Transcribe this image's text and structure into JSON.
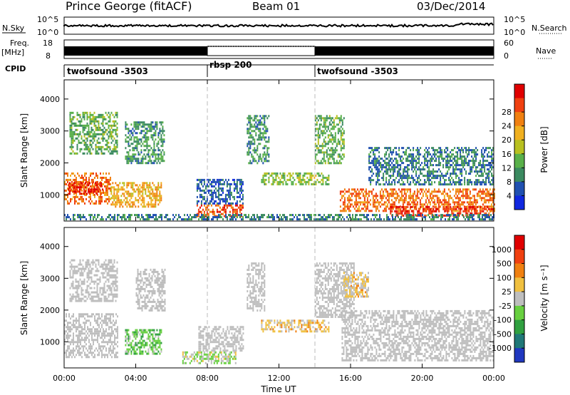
{
  "header": {
    "station": "Prince George (fitACF)",
    "beam": "Beam 01",
    "date": "03/Dec/2014"
  },
  "strips": {
    "nsky_label": "N.Sky",
    "nsky_ticks": [
      "10^5",
      "10^0"
    ],
    "nsearch_label": "N.Search",
    "nsearch_ticks": [
      "10^5",
      "10^0"
    ],
    "freq_label": "Freq.",
    "freq_unit": "[MHz]",
    "freq_ticks": [
      "18",
      "8"
    ],
    "nave_label": "Nave",
    "nave_ticks": [
      "60",
      "0"
    ],
    "cpid_label": "CPID",
    "cpid_segments": [
      {
        "label": "twofsound -3503",
        "start_hour": 0,
        "end_hour": 8
      },
      {
        "label": "rbsp 200",
        "start_hour": 8,
        "end_hour": 14
      },
      {
        "label": "twofsound -3503",
        "start_hour": 14,
        "end_hour": 24
      }
    ]
  },
  "axes": {
    "xlabel": "Time UT",
    "x_ticks": [
      "00:00",
      "04:00",
      "08:00",
      "12:00",
      "16:00",
      "20:00",
      "00:00"
    ],
    "ylabel": "Slant Range [km]",
    "y_ticks": [
      "1000",
      "2000",
      "3000",
      "4000"
    ]
  },
  "colorbars": {
    "power": {
      "label": "Power [dB]",
      "ticks": [
        "4",
        "8",
        "12",
        "16",
        "20",
        "24",
        "28"
      ],
      "colors": [
        "#1028e0",
        "#2050b0",
        "#3b8a60",
        "#59b04a",
        "#b8c020",
        "#f0b020",
        "#f08010",
        "#f04010",
        "#e00000"
      ]
    },
    "velocity": {
      "label": "Velocity [m s⁻¹]",
      "ticks": [
        "1000",
        "500",
        "100",
        "25",
        "-25",
        "-100",
        "-500",
        "-1000"
      ],
      "colors": [
        "#2038c0",
        "#207878",
        "#30a040",
        "#68d040",
        "#bebebe",
        "#f0c040",
        "#f08010",
        "#f04010",
        "#e00000"
      ]
    }
  },
  "chart_data": [
    {
      "type": "heatmap",
      "name": "power",
      "xlabel": "Time UT",
      "ylabel": "Slant Range [km]",
      "xlim": [
        0,
        24
      ],
      "ylim": [
        180,
        4600
      ],
      "clim": [
        0,
        32
      ],
      "vertical_markers_hour": [
        8,
        14
      ],
      "regions": [
        {
          "x": [
            0.0,
            2.6
          ],
          "y": [
            700,
            1700
          ],
          "value": 24
        },
        {
          "x": [
            0.2,
            2.2
          ],
          "y": [
            1000,
            1400
          ],
          "value": 28
        },
        {
          "x": [
            0.3,
            3.0
          ],
          "y": [
            2300,
            3600
          ],
          "value": 12
        },
        {
          "x": [
            2.6,
            5.4
          ],
          "y": [
            600,
            1400
          ],
          "value": 20
        },
        {
          "x": [
            3.4,
            5.6
          ],
          "y": [
            2000,
            3300
          ],
          "value": 10
        },
        {
          "x": [
            7.4,
            10.0
          ],
          "y": [
            300,
            700
          ],
          "value": 26
        },
        {
          "x": [
            7.4,
            10.0
          ],
          "y": [
            700,
            1500
          ],
          "value": 6
        },
        {
          "x": [
            10.2,
            11.4
          ],
          "y": [
            2000,
            3500
          ],
          "value": 10
        },
        {
          "x": [
            11.0,
            14.8
          ],
          "y": [
            1300,
            1700
          ],
          "value": 14
        },
        {
          "x": [
            14.0,
            15.6
          ],
          "y": [
            2000,
            3500
          ],
          "value": 12
        },
        {
          "x": [
            15.4,
            24.0
          ],
          "y": [
            500,
            1200
          ],
          "value": 24
        },
        {
          "x": [
            18.2,
            24.0
          ],
          "y": [
            350,
            650
          ],
          "value": 28
        },
        {
          "x": [
            17.0,
            24.0
          ],
          "y": [
            1300,
            2500
          ],
          "value": 8
        },
        {
          "x": [
            0.0,
            24.0
          ],
          "y": [
            200,
            400
          ],
          "value": 8
        }
      ]
    },
    {
      "type": "heatmap",
      "name": "velocity",
      "xlabel": "Time UT",
      "ylabel": "Slant Range [km]",
      "xlim": [
        0,
        24
      ],
      "ylim": [
        180,
        4600
      ],
      "clim": [
        -1000,
        1000
      ],
      "vertical_markers_hour": [
        8,
        14
      ],
      "regions": [
        {
          "x": [
            0.0,
            3.0
          ],
          "y": [
            500,
            1900
          ],
          "value": 0
        },
        {
          "x": [
            0.3,
            3.0
          ],
          "y": [
            2300,
            3600
          ],
          "value": 0
        },
        {
          "x": [
            3.4,
            5.4
          ],
          "y": [
            600,
            1400
          ],
          "value": -300
        },
        {
          "x": [
            4.0,
            5.6
          ],
          "y": [
            2000,
            3300
          ],
          "value": 0
        },
        {
          "x": [
            6.6,
            9.6
          ],
          "y": [
            300,
            700
          ],
          "value": -80
        },
        {
          "x": [
            7.5,
            10.0
          ],
          "y": [
            700,
            1500
          ],
          "value": 0
        },
        {
          "x": [
            10.2,
            11.2
          ],
          "y": [
            2000,
            3500
          ],
          "value": 0
        },
        {
          "x": [
            11.0,
            14.8
          ],
          "y": [
            1300,
            1700
          ],
          "value": 200
        },
        {
          "x": [
            14.0,
            16.2
          ],
          "y": [
            1800,
            3500
          ],
          "value": 0
        },
        {
          "x": [
            15.5,
            24.0
          ],
          "y": [
            400,
            2000
          ],
          "value": 0
        },
        {
          "x": [
            15.6,
            17.0
          ],
          "y": [
            2400,
            3200
          ],
          "value": 150
        }
      ]
    }
  ]
}
